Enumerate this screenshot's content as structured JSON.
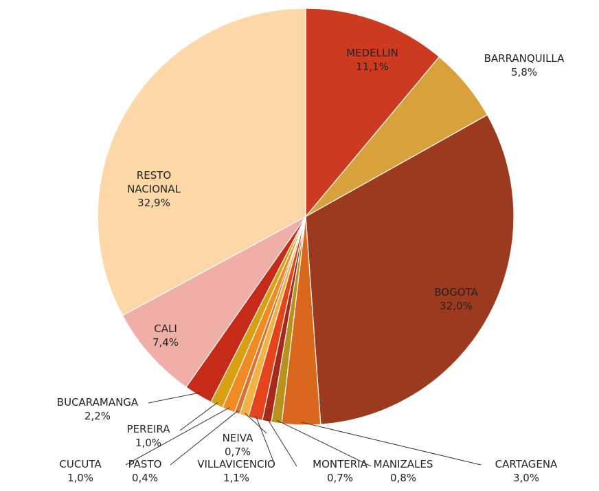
{
  "chart_data": {
    "type": "pie",
    "categories": [
      "MEDELLIN",
      "BARRANQUILLA",
      "BOGOTA",
      "CARTAGENA",
      "MANIZALES",
      "MONTERIA",
      "VILLAVICENCIO",
      "NEIVA",
      "PASTO",
      "CUCUTA",
      "PEREIRA",
      "BUCARAMANGA",
      "CALI",
      "RESTO NACIONAL"
    ],
    "values": [
      11.1,
      5.8,
      32.0,
      3.0,
      0.8,
      0.7,
      1.1,
      0.7,
      0.4,
      1.0,
      1.0,
      2.2,
      7.4,
      32.9
    ],
    "value_labels": [
      "11,1%",
      "5,8%",
      "32,0%",
      "3,0%",
      "0,8%",
      "0,7%",
      "1,1%",
      "0,7%",
      "0,4%",
      "1,0%",
      "1,0%",
      "2,2%",
      "7,4%",
      "32,9%"
    ],
    "colors": [
      "#cc3a1f",
      "#d9a13c",
      "#9c3a1f",
      "#d9681c",
      "#b8921c",
      "#a8281a",
      "#e4431b",
      "#f1b443",
      "#e0702e",
      "#f08a22",
      "#d8a012",
      "#c62a19",
      "#f0afa6",
      "#fcd8a8"
    ]
  }
}
